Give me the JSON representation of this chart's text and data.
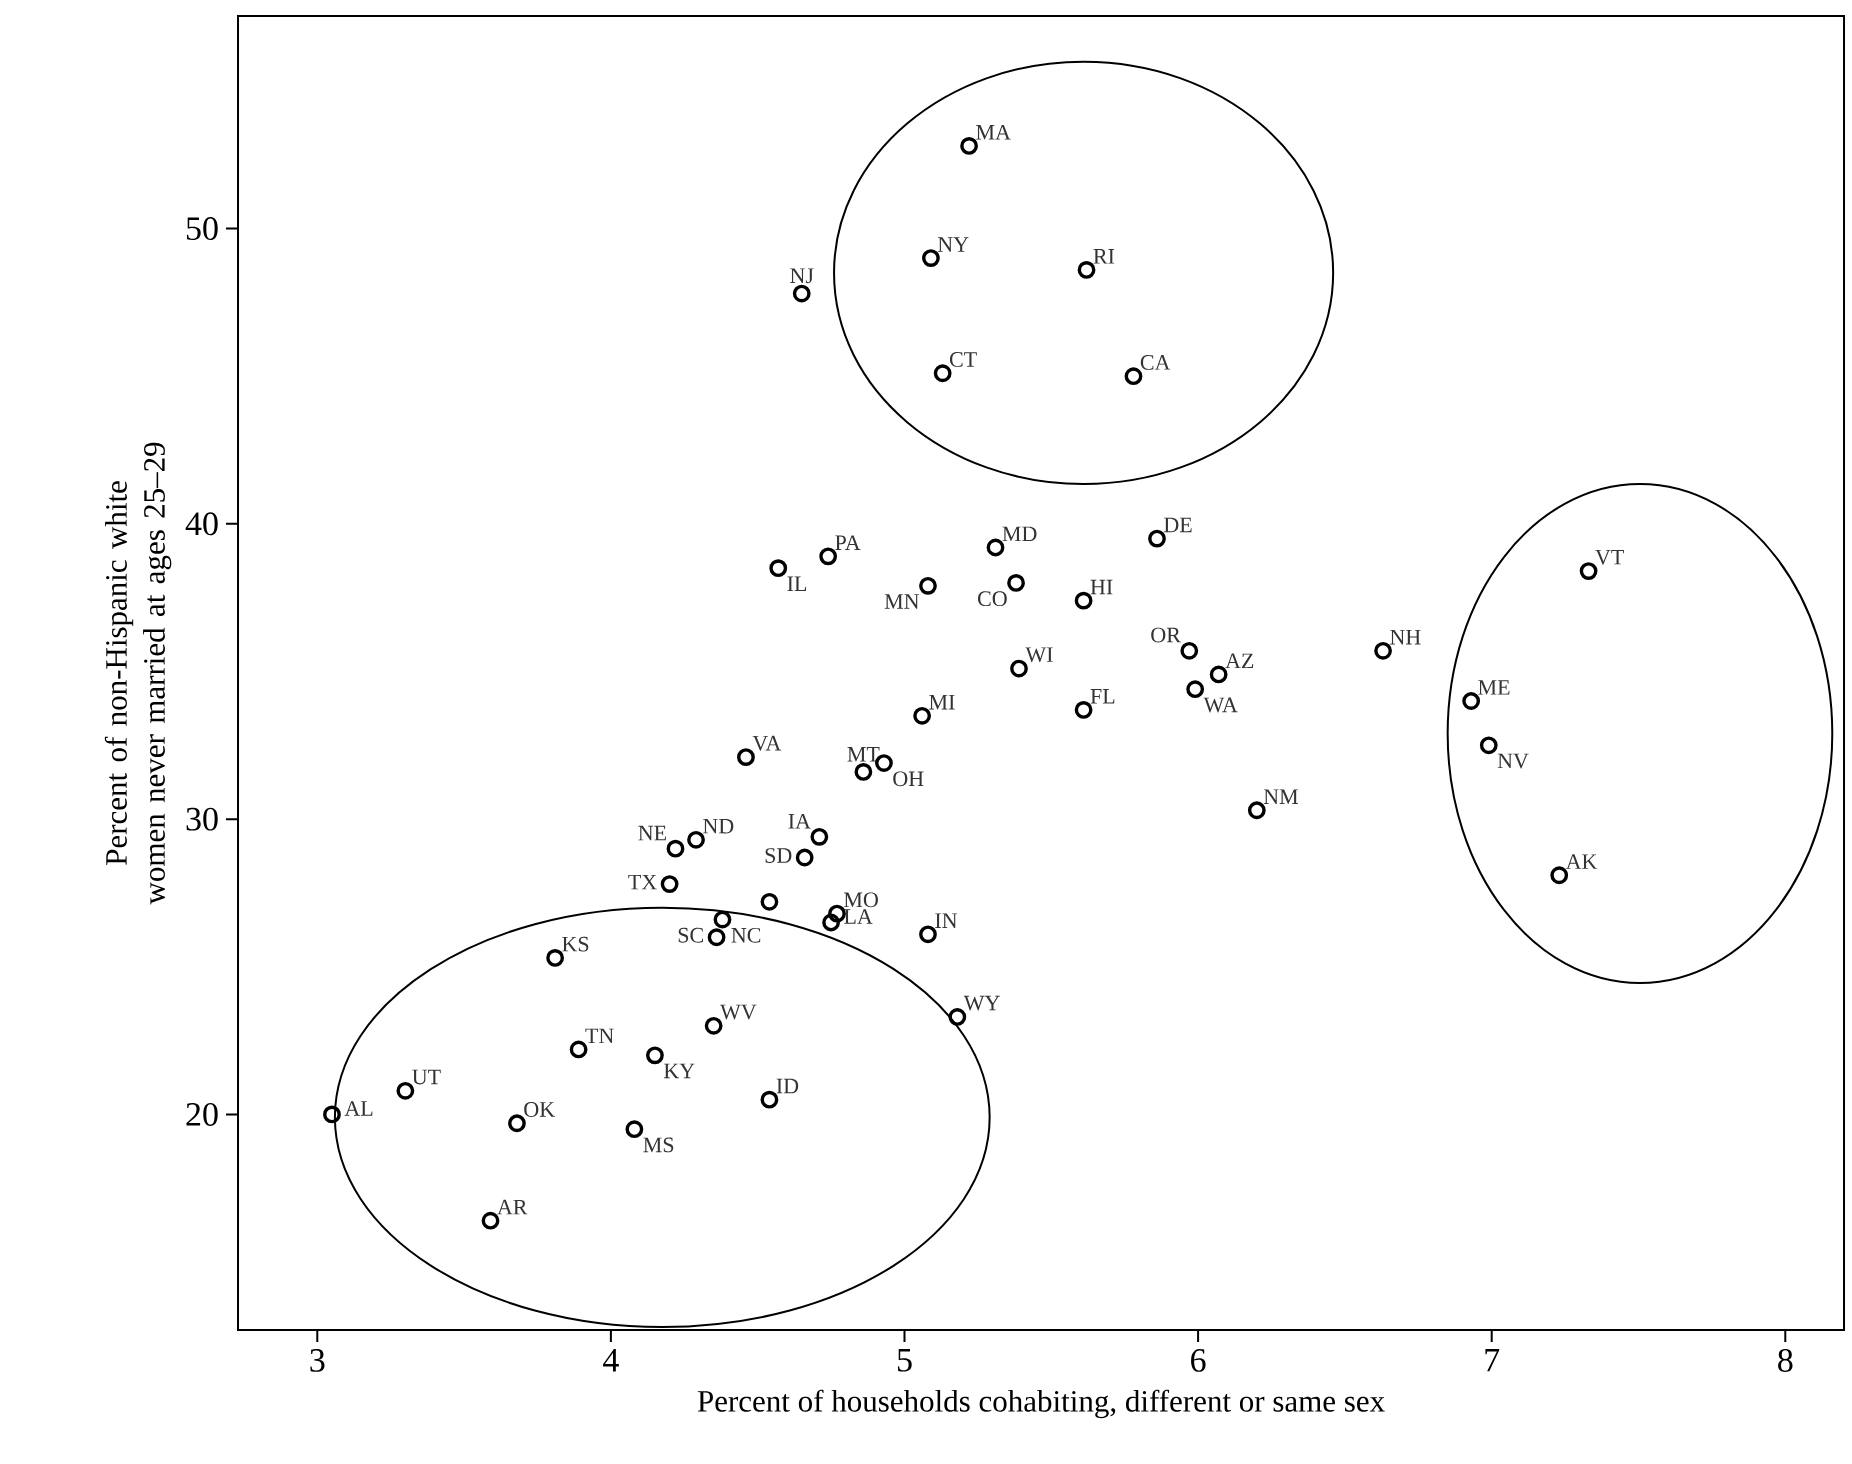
{
  "chart_data": {
    "type": "scatter",
    "xlabel": "Percent of households cohabiting, different or same sex",
    "ylabel": "Percent of non-Hispanic white women never married at ages 25–29",
    "xlim": [
      2.73,
      8.2
    ],
    "ylim": [
      12.7,
      57.2
    ],
    "xticks": [
      3,
      4,
      5,
      6,
      7,
      8
    ],
    "yticks": [
      20,
      30,
      40,
      50
    ],
    "color": "#000000",
    "marker": "circle",
    "x": [
      5.22,
      5.09,
      5.62,
      4.65,
      5.13,
      5.78,
      4.74,
      4.57,
      5.31,
      5.86,
      5.08,
      5.38,
      5.61,
      5.97,
      6.07,
      5.99,
      5.39,
      5.61,
      5.06,
      4.46,
      4.86,
      4.93,
      4.22,
      4.29,
      4.71,
      4.66,
      4.2,
      4.77,
      4.75,
      4.36,
      4.38,
      5.08,
      3.81,
      5.18,
      4.35,
      3.89,
      4.15,
      3.3,
      3.05,
      3.68,
      4.08,
      4.54,
      3.59,
      6.63,
      7.33,
      6.93,
      6.99,
      7.23,
      6.2,
      4.54
    ],
    "values": [
      52.8,
      49.0,
      48.6,
      47.8,
      45.1,
      45.0,
      38.9,
      38.5,
      39.2,
      39.5,
      37.9,
      38.0,
      37.4,
      35.7,
      34.9,
      34.4,
      35.1,
      33.7,
      33.5,
      32.1,
      31.6,
      31.9,
      29.0,
      29.3,
      29.4,
      28.7,
      27.8,
      26.8,
      26.5,
      26.0,
      26.6,
      26.1,
      25.3,
      23.3,
      23.0,
      22.2,
      22.0,
      20.8,
      20.0,
      19.7,
      19.5,
      20.5,
      16.4,
      35.7,
      38.4,
      34.0,
      32.5,
      28.1,
      30.3,
      27.2
    ],
    "annotations": [
      {
        "text": "MA",
        "x": 5.22,
        "y": 52.8
      },
      {
        "text": "NY",
        "x": 5.09,
        "y": 49.0
      },
      {
        "text": "RI",
        "x": 5.62,
        "y": 48.6
      },
      {
        "text": "NJ",
        "x": 4.65,
        "y": 47.8
      },
      {
        "text": "CT",
        "x": 5.13,
        "y": 45.1
      },
      {
        "text": "CA",
        "x": 5.78,
        "y": 45.0
      },
      {
        "text": "PA",
        "x": 4.74,
        "y": 38.9
      },
      {
        "text": "IL",
        "x": 4.57,
        "y": 38.5
      },
      {
        "text": "MD",
        "x": 5.31,
        "y": 39.2
      },
      {
        "text": "DE",
        "x": 5.86,
        "y": 39.5
      },
      {
        "text": "MN",
        "x": 5.08,
        "y": 37.9
      },
      {
        "text": "CO",
        "x": 5.38,
        "y": 38.0
      },
      {
        "text": "HI",
        "x": 5.61,
        "y": 37.4
      },
      {
        "text": "OR",
        "x": 5.97,
        "y": 35.7
      },
      {
        "text": "AZ",
        "x": 6.07,
        "y": 34.9
      },
      {
        "text": "WA",
        "x": 5.99,
        "y": 34.4
      },
      {
        "text": "WI",
        "x": 5.39,
        "y": 35.1
      },
      {
        "text": "FL",
        "x": 5.61,
        "y": 33.7
      },
      {
        "text": "MI",
        "x": 5.06,
        "y": 33.5
      },
      {
        "text": "VA",
        "x": 4.46,
        "y": 32.1
      },
      {
        "text": "MT",
        "x": 4.86,
        "y": 31.6
      },
      {
        "text": "OH",
        "x": 4.93,
        "y": 31.9
      },
      {
        "text": "NE",
        "x": 4.22,
        "y": 29.0
      },
      {
        "text": "ND",
        "x": 4.29,
        "y": 29.3
      },
      {
        "text": "IA",
        "x": 4.71,
        "y": 29.4
      },
      {
        "text": "SD",
        "x": 4.66,
        "y": 28.7
      },
      {
        "text": "TX",
        "x": 4.2,
        "y": 27.8
      },
      {
        "text": "MO",
        "x": 4.77,
        "y": 26.8
      },
      {
        "text": "LA",
        "x": 4.75,
        "y": 26.5
      },
      {
        "text": "SC",
        "x": 4.36,
        "y": 26.0
      },
      {
        "text": "NC",
        "x": 4.38,
        "y": 26.6
      },
      {
        "text": "IN",
        "x": 5.08,
        "y": 26.1
      },
      {
        "text": "KS",
        "x": 3.81,
        "y": 25.3
      },
      {
        "text": "WY",
        "x": 5.18,
        "y": 23.3
      },
      {
        "text": "WV",
        "x": 4.35,
        "y": 23.0
      },
      {
        "text": "TN",
        "x": 3.89,
        "y": 22.2
      },
      {
        "text": "KY",
        "x": 4.15,
        "y": 22.0
      },
      {
        "text": "UT",
        "x": 3.3,
        "y": 20.8
      },
      {
        "text": "AL",
        "x": 3.05,
        "y": 20.0
      },
      {
        "text": "OK",
        "x": 3.68,
        "y": 19.7
      },
      {
        "text": "MS",
        "x": 4.08,
        "y": 19.5
      },
      {
        "text": "ID",
        "x": 4.54,
        "y": 20.5
      },
      {
        "text": "AR",
        "x": 3.59,
        "y": 16.4
      },
      {
        "text": "NH",
        "x": 6.63,
        "y": 35.7
      },
      {
        "text": "VT",
        "x": 7.33,
        "y": 38.4
      },
      {
        "text": "ME",
        "x": 6.93,
        "y": 34.0
      },
      {
        "text": "NV",
        "x": 6.99,
        "y": 32.5
      },
      {
        "text": "AK",
        "x": 7.23,
        "y": 28.1
      },
      {
        "text": "NM",
        "x": 6.2,
        "y": 30.3
      }
    ]
  }
}
